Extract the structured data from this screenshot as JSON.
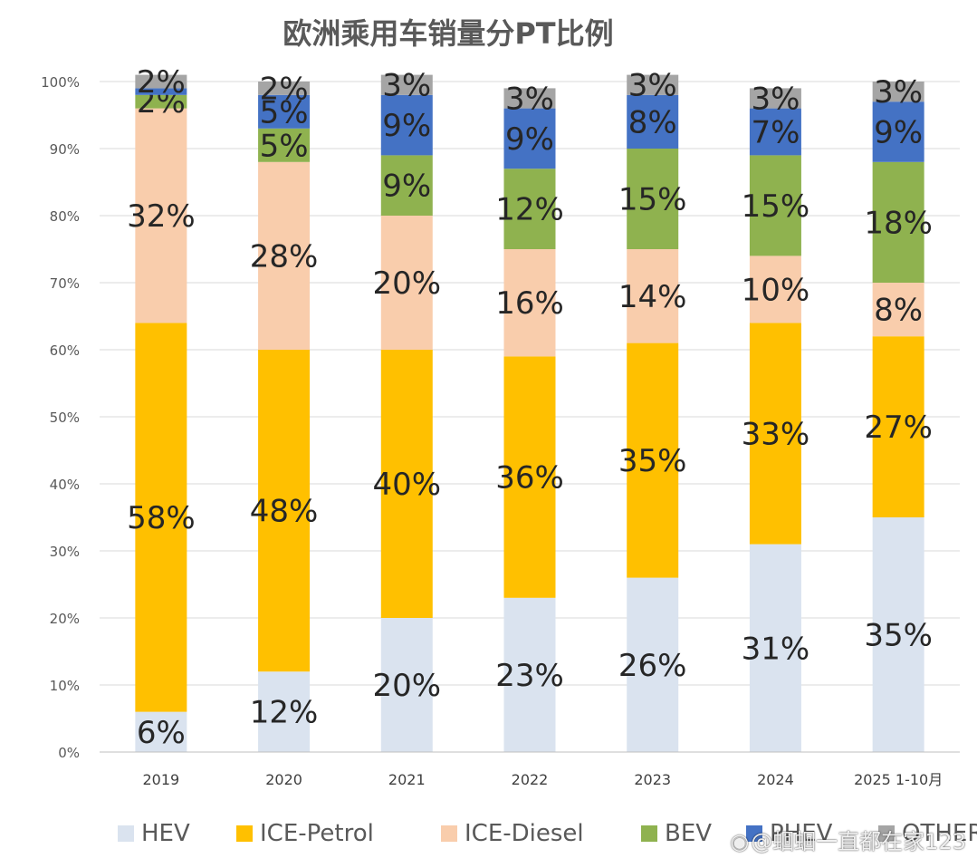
{
  "chart_data": {
    "type": "bar",
    "stacked": true,
    "title": "欧洲乘用车销量分PT比例",
    "xlabel": "",
    "ylabel": "",
    "ylim": [
      0,
      100
    ],
    "yticks": [
      "0%",
      "10%",
      "20%",
      "30%",
      "40%",
      "50%",
      "60%",
      "70%",
      "80%",
      "90%",
      "100%"
    ],
    "grid": true,
    "legend_position": "bottom",
    "categories": [
      "2019",
      "2020",
      "2021",
      "2022",
      "2023",
      "2024",
      "2025 1-10月"
    ],
    "series": [
      {
        "name": "HEV",
        "color": "#dae3ef",
        "values": [
          6,
          12,
          20,
          23,
          26,
          31,
          35
        ],
        "labels": [
          "6%",
          "12%",
          "20%",
          "23%",
          "26%",
          "31%",
          "35%"
        ]
      },
      {
        "name": "ICE-Petrol",
        "color": "#ffc000",
        "values": [
          58,
          48,
          40,
          36,
          35,
          33,
          27
        ],
        "labels": [
          "58%",
          "48%",
          "40%",
          "36%",
          "35%",
          "33%",
          "27%"
        ]
      },
      {
        "name": "ICE-Diesel",
        "color": "#f9cdac",
        "values": [
          32,
          28,
          20,
          16,
          14,
          10,
          8
        ],
        "labels": [
          "32%",
          "28%",
          "20%",
          "16%",
          "14%",
          "10%",
          "8%"
        ]
      },
      {
        "name": "BEV",
        "color": "#8fb24f",
        "values": [
          2,
          5,
          9,
          12,
          15,
          15,
          18
        ],
        "labels": [
          "2%",
          "5%",
          "9%",
          "12%",
          "15%",
          "15%",
          "18%"
        ]
      },
      {
        "name": "PHEV",
        "color": "#4472c4",
        "values": [
          1,
          5,
          9,
          9,
          8,
          7,
          9
        ],
        "labels": [
          "",
          "5%",
          "9%",
          "9%",
          "8%",
          "7%",
          "9%"
        ]
      },
      {
        "name": "OTHERS",
        "color": "#a5a5a5",
        "values": [
          2,
          2,
          3,
          3,
          3,
          3,
          3
        ],
        "labels": [
          "2%",
          "2%",
          "3%",
          "3%",
          "3%",
          "3%",
          "3%"
        ]
      }
    ],
    "legend_visible": [
      "HEV",
      "ICE-Petrol",
      "ICE-Diesel",
      "BEV",
      "PHEV",
      "OTHERS"
    ]
  },
  "watermark": {
    "icon": "weibo-icon",
    "text": "@蛔蛔一直都在家123"
  }
}
